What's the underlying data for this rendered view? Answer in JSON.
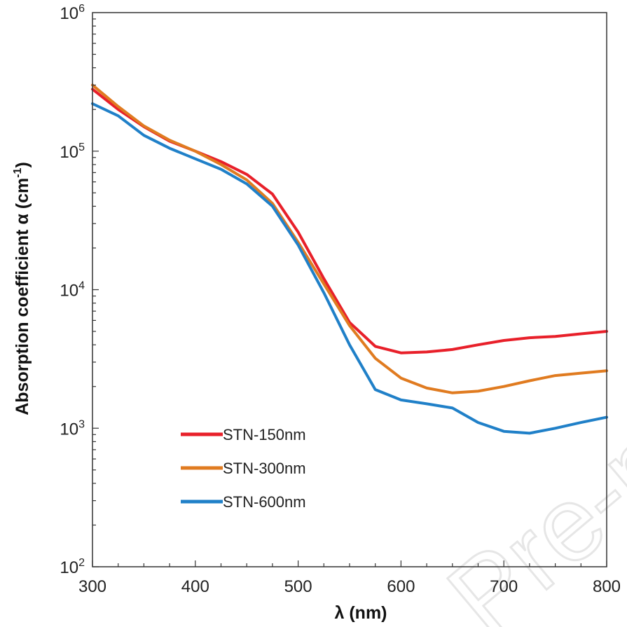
{
  "chart_data": {
    "type": "line",
    "title": "",
    "xlabel": "λ (nm)",
    "ylabel_main": "Absorption coefficient  α  (cm",
    "ylabel_sup": "-1",
    "ylabel_close": ")",
    "xlim": [
      300,
      800
    ],
    "ylim": [
      100,
      1000000
    ],
    "yscale": "log",
    "x_ticks": [
      "300",
      "400",
      "500",
      "600",
      "700",
      "800"
    ],
    "y_ticks": [
      {
        "value": 100,
        "base": "10",
        "exp": "2"
      },
      {
        "value": 1000,
        "base": "10",
        "exp": "3"
      },
      {
        "value": 10000,
        "base": "10",
        "exp": "4"
      },
      {
        "value": 100000,
        "base": "10",
        "exp": "5"
      },
      {
        "value": 1000000,
        "base": "10",
        "exp": "6"
      }
    ],
    "grid": false,
    "legend_position": "lower-left",
    "watermark": "Pre-proof",
    "series": [
      {
        "name": "STN-150nm",
        "color": "#e8202a",
        "x": [
          300,
          325,
          350,
          375,
          400,
          425,
          450,
          475,
          500,
          525,
          550,
          575,
          600,
          625,
          650,
          675,
          700,
          725,
          750,
          775,
          800
        ],
        "y": [
          280000,
          200000,
          150000,
          118000,
          100000,
          84000,
          68000,
          49000,
          26000,
          12000,
          5800,
          3900,
          3500,
          3550,
          3700,
          4000,
          4300,
          4500,
          4600,
          4800,
          5000
        ]
      },
      {
        "name": "STN-300nm",
        "color": "#e07b20",
        "x": [
          300,
          325,
          350,
          375,
          400,
          425,
          450,
          475,
          500,
          525,
          550,
          575,
          600,
          625,
          650,
          675,
          700,
          725,
          750,
          775,
          800
        ],
        "y": [
          300000,
          210000,
          152000,
          120000,
          100000,
          80000,
          62000,
          42000,
          22000,
          11000,
          5500,
          3200,
          2300,
          1950,
          1800,
          1850,
          2000,
          2200,
          2400,
          2500,
          2600
        ]
      },
      {
        "name": "STN-600nm",
        "color": "#2080c8",
        "x": [
          300,
          325,
          350,
          375,
          400,
          425,
          450,
          475,
          500,
          525,
          550,
          575,
          600,
          625,
          650,
          675,
          700,
          725,
          750,
          775,
          800
        ],
        "y": [
          220000,
          180000,
          130000,
          105000,
          88000,
          74000,
          58000,
          40000,
          21000,
          9500,
          4000,
          1900,
          1600,
          1500,
          1400,
          1100,
          950,
          920,
          1000,
          1100,
          1200
        ]
      }
    ]
  }
}
